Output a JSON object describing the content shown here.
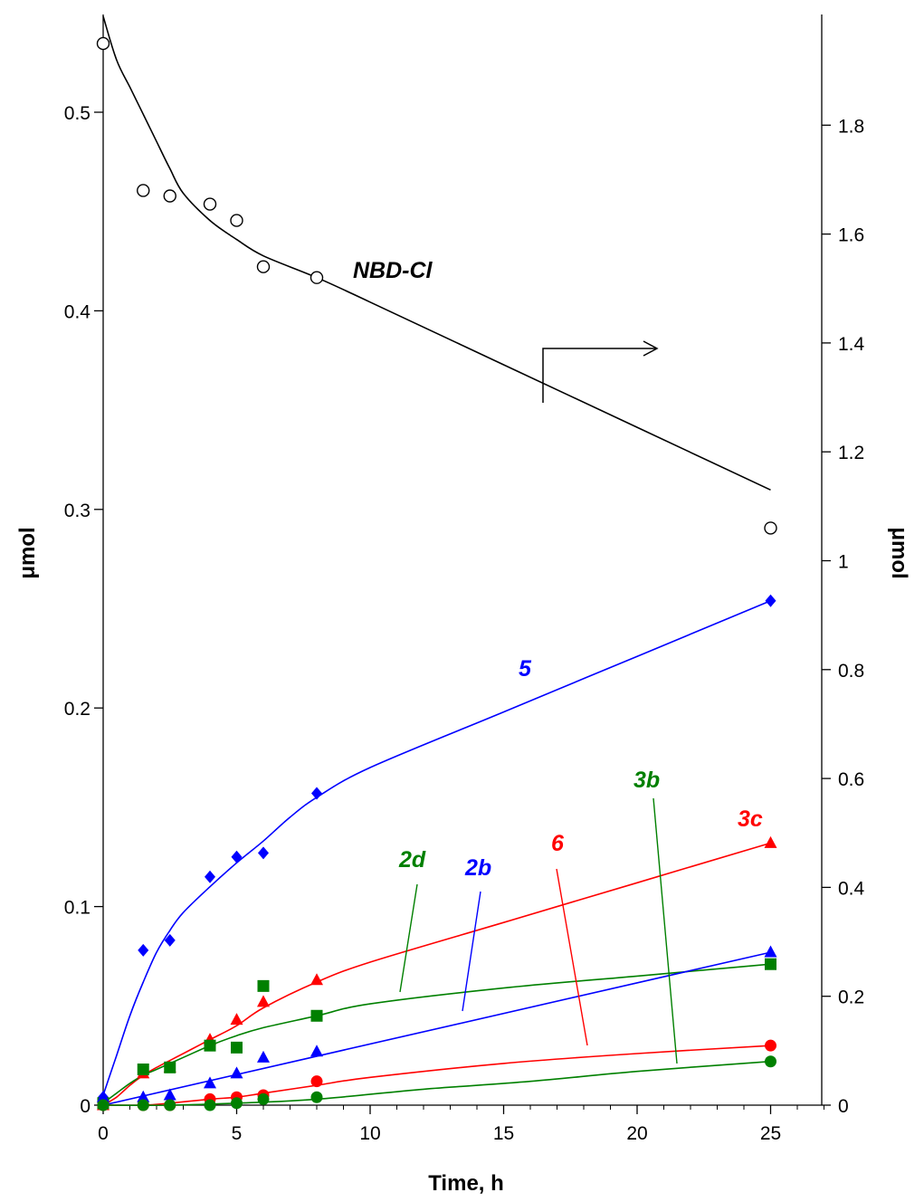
{
  "chart_data": {
    "type": "scatter",
    "xlabel": "Time, h",
    "ylabel": "μmol",
    "y2label": "μmol",
    "xlim": [
      0,
      27
    ],
    "ylim": [
      0,
      0.55
    ],
    "y2lim": [
      0,
      2.0
    ],
    "x_ticks": [
      0,
      5,
      10,
      15,
      20,
      25
    ],
    "y_ticks": [
      0,
      0.1,
      0.2,
      0.3,
      0.4,
      0.5
    ],
    "y2_ticks": [
      0,
      0.2,
      0.4,
      0.6,
      0.8,
      1,
      1.2,
      1.4,
      1.6,
      1.8
    ],
    "grid": false,
    "legend": "none",
    "series": [
      {
        "name": "NBD-Cl",
        "axis": "right",
        "color": "#000000",
        "marker": "open-circle",
        "x": [
          0,
          1.5,
          2.5,
          4,
          5,
          6,
          8,
          25
        ],
        "y": [
          1.95,
          1.68,
          1.67,
          1.655,
          1.625,
          1.54,
          1.52,
          1.06
        ],
        "fit_x": [
          0,
          0.5,
          1,
          1.5,
          2,
          2.5,
          3,
          4,
          5,
          6,
          8,
          10,
          15,
          20,
          25
        ],
        "fit_y": [
          2.0,
          1.92,
          1.87,
          1.82,
          1.77,
          1.72,
          1.675,
          1.625,
          1.59,
          1.56,
          1.52,
          1.475,
          1.36,
          1.245,
          1.13
        ]
      },
      {
        "name": "5",
        "axis": "left",
        "color": "#0000ff",
        "marker": "diamond",
        "x": [
          0,
          1.5,
          2.5,
          4,
          5,
          6,
          8,
          25
        ],
        "y": [
          0.004,
          0.078,
          0.083,
          0.115,
          0.125,
          0.127,
          0.157,
          0.254
        ],
        "fit_x": [
          0,
          0.5,
          1,
          1.5,
          2,
          2.5,
          3,
          4,
          5,
          6,
          7,
          8,
          10,
          15,
          20,
          25
        ],
        "fit_y": [
          0.005,
          0.025,
          0.045,
          0.062,
          0.077,
          0.088,
          0.097,
          0.11,
          0.122,
          0.133,
          0.145,
          0.155,
          0.17,
          0.198,
          0.226,
          0.254
        ]
      },
      {
        "name": "3c",
        "axis": "left",
        "color": "#ff0000",
        "marker": "triangle",
        "x": [
          0,
          1.5,
          2.5,
          4,
          5,
          6,
          8,
          25
        ],
        "y": [
          0.0,
          0.016,
          0.019,
          0.033,
          0.043,
          0.052,
          0.063,
          0.132
        ],
        "fit_x": [
          0,
          0.5,
          1,
          1.5,
          2,
          3,
          4,
          5,
          6,
          8,
          10,
          15,
          20,
          25
        ],
        "fit_y": [
          0.0,
          0.004,
          0.01,
          0.015,
          0.019,
          0.026,
          0.033,
          0.04,
          0.049,
          0.062,
          0.072,
          0.092,
          0.112,
          0.132
        ]
      },
      {
        "name": "2d",
        "axis": "left",
        "color": "#008000",
        "marker": "square",
        "x": [
          0,
          1.5,
          2.5,
          4,
          5,
          6,
          8,
          25
        ],
        "y": [
          0.001,
          0.018,
          0.019,
          0.03,
          0.029,
          0.06,
          0.045,
          0.071
        ],
        "fit_x": [
          0,
          0.5,
          1,
          1.5,
          2,
          3,
          4,
          5,
          6,
          8,
          10,
          15,
          20,
          25
        ],
        "fit_y": [
          0.001,
          0.006,
          0.011,
          0.015,
          0.018,
          0.024,
          0.03,
          0.035,
          0.039,
          0.045,
          0.051,
          0.059,
          0.065,
          0.071
        ]
      },
      {
        "name": "2b",
        "axis": "left",
        "color": "#0000ff",
        "marker": "triangle",
        "x": [
          0,
          1.5,
          2.5,
          4,
          5,
          6,
          8,
          25
        ],
        "y": [
          0.004,
          0.004,
          0.005,
          0.011,
          0.016,
          0.024,
          0.027,
          0.077
        ],
        "fit_x": [
          0,
          25
        ],
        "fit_y": [
          0.0,
          0.077
        ]
      },
      {
        "name": "6",
        "axis": "left",
        "color": "#ff0000",
        "marker": "circle",
        "x": [
          0,
          1.5,
          2.5,
          4,
          5,
          6,
          8,
          25
        ],
        "y": [
          0.0,
          0.0,
          0.0,
          0.003,
          0.004,
          0.005,
          0.012,
          0.03
        ],
        "fit_x": [
          0,
          1.5,
          2.5,
          4,
          5,
          6,
          8,
          10,
          15,
          20,
          25
        ],
        "fit_y": [
          0.0,
          0.0,
          0.001,
          0.003,
          0.004,
          0.006,
          0.01,
          0.014,
          0.021,
          0.026,
          0.03
        ]
      },
      {
        "name": "3b",
        "axis": "left",
        "color": "#008000",
        "marker": "circle",
        "x": [
          0,
          1.5,
          2.5,
          4,
          5,
          6,
          8,
          25
        ],
        "y": [
          0.0,
          0.0,
          0.0,
          0.0,
          0.001,
          0.003,
          0.004,
          0.022
        ],
        "fit_x": [
          0,
          2.5,
          5,
          8,
          12,
          16,
          20,
          25
        ],
        "fit_y": [
          0.0,
          0.0,
          0.001,
          0.003,
          0.008,
          0.012,
          0.017,
          0.022
        ]
      }
    ],
    "annotations": [
      {
        "text": "NBD-Cl",
        "color": "#000000"
      },
      {
        "text": "5",
        "color": "#0000ff"
      },
      {
        "text": "3b",
        "color": "#008000"
      },
      {
        "text": "3c",
        "color": "#ff0000"
      },
      {
        "text": "6",
        "color": "#ff0000"
      },
      {
        "text": "2b",
        "color": "#0000ff"
      },
      {
        "text": "2d",
        "color": "#008000"
      }
    ]
  }
}
